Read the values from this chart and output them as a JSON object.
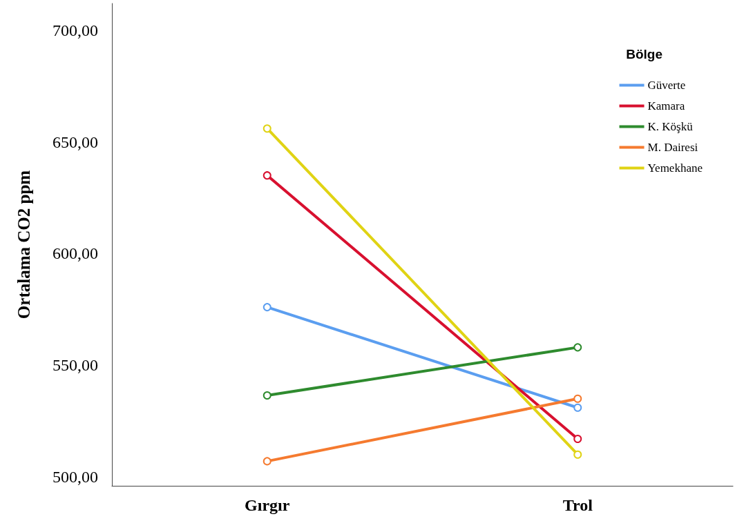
{
  "chart_data": {
    "type": "line",
    "ylabel": "Ortalama CO2 ppm",
    "legend_title": "Bölge",
    "categories": [
      "Gırgır",
      "Trol"
    ],
    "series": [
      {
        "name": "Güverte",
        "color": "#5b9ef0",
        "values": [
          576,
          531
        ]
      },
      {
        "name": "Kamara",
        "color": "#d8102f",
        "values": [
          635,
          517
        ]
      },
      {
        "name": "K. Köşkü",
        "color": "#2e8b2e",
        "values": [
          536.5,
          558
        ]
      },
      {
        "name": "M. Dairesi",
        "color": "#f57a2f",
        "values": [
          507,
          535
        ]
      },
      {
        "name": "Yemekhane",
        "color": "#e0d314",
        "values": [
          656,
          510
        ]
      }
    ],
    "ylim": [
      496,
      712
    ],
    "yticks": [
      {
        "value": 500,
        "label": "500,00"
      },
      {
        "value": 550,
        "label": "550,00"
      },
      {
        "value": 600,
        "label": "600,00"
      },
      {
        "value": 650,
        "label": "650,00"
      },
      {
        "value": 700,
        "label": "700,00"
      }
    ],
    "grid": false,
    "legend": "top right",
    "marker": "circle",
    "line_style": "solid"
  }
}
